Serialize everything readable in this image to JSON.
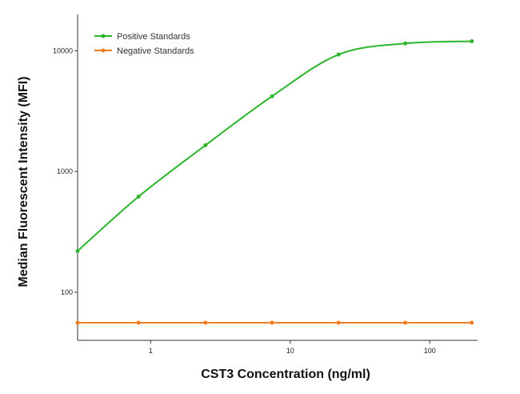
{
  "chart_data": {
    "type": "line",
    "xlabel": "CST3 Concentration (ng/ml)",
    "ylabel": "Median  Fluorescent Intensity  (MFI)",
    "x_scale": "log",
    "y_scale": "log",
    "xlim": [
      0.3,
      220
    ],
    "ylim": [
      40,
      20000
    ],
    "x_ticks": [
      1,
      10,
      100
    ],
    "x_tick_labels": [
      "1",
      "10",
      "100"
    ],
    "y_ticks": [
      100,
      1000,
      10000
    ],
    "y_tick_labels": [
      "100",
      "1000",
      "10000"
    ],
    "grid": false,
    "legend_position": "top-left",
    "series": [
      {
        "name": "Positive Standards",
        "color": "#2db52d",
        "x": [
          0.3,
          0.82,
          2.47,
          7.41,
          22.2,
          66.7,
          200
        ],
        "values": [
          220,
          620,
          1650,
          4200,
          9300,
          11500,
          12000
        ]
      },
      {
        "name": "Negative Standards",
        "color": "#f07d1e",
        "x": [
          0.3,
          0.82,
          2.47,
          7.41,
          22.2,
          66.7,
          200
        ],
        "values": [
          56,
          56,
          56,
          56,
          56,
          56,
          56
        ]
      }
    ]
  }
}
